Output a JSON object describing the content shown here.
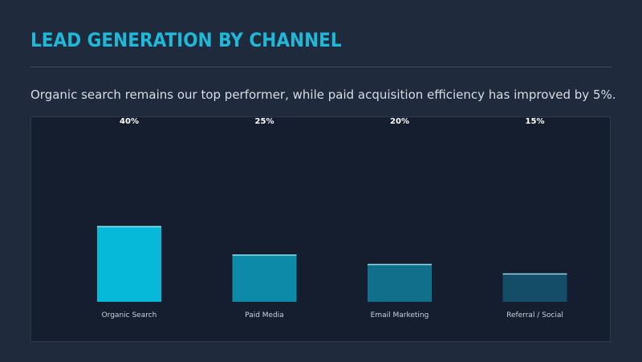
{
  "slide": {
    "title": "LEAD GENERATION BY CHANNEL",
    "subtitle": "Organic search remains our top performer, while paid acquisition efficiency has improved by 5%."
  },
  "colors": {
    "background": "#1f2a3c",
    "title": "#1fb8d8",
    "panel": "#151e2e",
    "bars": [
      "#06b9d9",
      "#0c8aa8",
      "#106f8a",
      "#144d66"
    ],
    "bar_highlight": "#a8eefa"
  },
  "chart_data": {
    "type": "bar",
    "categories": [
      "Organic Search",
      "Paid Media",
      "Email Marketing",
      "Referral / Social"
    ],
    "values": [
      40,
      25,
      20,
      15
    ],
    "value_labels": [
      "40%",
      "25%",
      "20%",
      "15%"
    ],
    "ylim": [
      0,
      100
    ],
    "grid": false,
    "legend": "none"
  }
}
